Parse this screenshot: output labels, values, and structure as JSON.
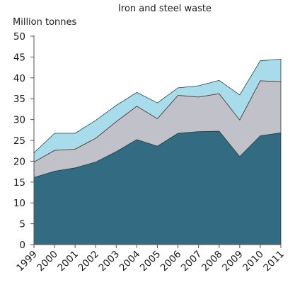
{
  "chart_data": {
    "type": "area",
    "stacked": true,
    "title": "Iron and steel waste",
    "ylabel": "Million tonnes",
    "xlabel": "",
    "x": [
      "1999",
      "2000",
      "2001",
      "2002",
      "2003",
      "2004",
      "2005",
      "2006",
      "2007",
      "2008",
      "2009",
      "2010",
      "2011"
    ],
    "ylim": [
      0,
      50
    ],
    "yticks": [
      0,
      5,
      10,
      15,
      20,
      25,
      30,
      35,
      40,
      45,
      50
    ],
    "grid": false,
    "legend": "none",
    "series": [
      {
        "color": "#336b82",
        "values": [
          16.1,
          17.6,
          18.4,
          19.8,
          22.3,
          25.2,
          23.6,
          26.7,
          27.1,
          27.2,
          21.1,
          26.1,
          26.8
        ]
      },
      {
        "color": "#c1c1c9",
        "values": [
          3.7,
          5.0,
          4.5,
          5.7,
          7.2,
          8.0,
          6.6,
          9.1,
          8.3,
          9.0,
          8.8,
          13.2,
          12.3
        ]
      },
      {
        "color": "#a8dcea",
        "values": [
          2.2,
          4.1,
          3.8,
          4.3,
          3.9,
          3.3,
          3.8,
          1.8,
          2.7,
          3.2,
          6.0,
          4.8,
          5.4
        ]
      }
    ]
  }
}
